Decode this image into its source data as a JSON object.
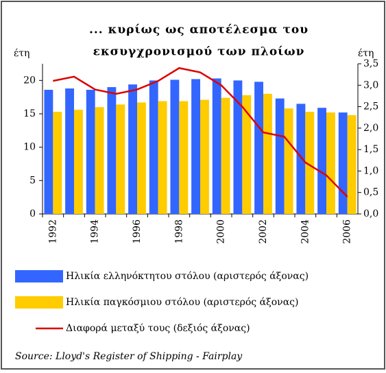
{
  "chart_data": {
    "type": "bar_line",
    "title": [
      "... κυρίως ως αποτέλεσμα του",
      "εκσυγχρονισμού των πλοίων"
    ],
    "y_label": "έτη",
    "y2_label": "έτη",
    "categories": [
      "1992",
      null,
      "1994",
      null,
      "1996",
      null,
      "1998",
      null,
      "2000",
      null,
      "2002",
      null,
      "2004",
      null,
      "2006"
    ],
    "series": [
      {
        "name": "Ηλικία ελληνόκτητου στόλου (αριστερός άξονας)",
        "color": "#3366ff",
        "type": "bar",
        "values": [
          18.6,
          18.8,
          18.6,
          19.0,
          19.4,
          20.0,
          20.1,
          20.2,
          20.3,
          20.0,
          19.8,
          17.3,
          16.5,
          15.9,
          15.2
        ]
      },
      {
        "name": "Ηλικία παγκόσμιου στόλου (αριστερός άξονας)",
        "color": "#ffcc00",
        "type": "bar",
        "values": [
          15.3,
          15.6,
          16.0,
          16.4,
          16.7,
          16.9,
          16.9,
          17.1,
          17.4,
          17.8,
          18.0,
          15.8,
          15.3,
          15.2,
          14.8
        ]
      },
      {
        "name": "Διαφορά μεταξύ τους (δεξιός άξονας)",
        "color": "#dd0000",
        "type": "line",
        "axis": "y2",
        "values": [
          3.1,
          3.2,
          2.9,
          2.8,
          2.9,
          3.1,
          3.4,
          3.3,
          3.0,
          2.5,
          1.9,
          1.8,
          1.2,
          0.9,
          0.4
        ]
      }
    ],
    "ylim": [
      0,
      22.5
    ],
    "yticks": [
      0,
      5,
      10,
      15,
      20
    ],
    "y2lim": [
      0,
      3.5
    ],
    "y2ticks": [
      {
        "value": 0,
        "label": "0,0"
      },
      {
        "value": 0.5,
        "label": "0,5"
      },
      {
        "value": 1,
        "label": "1,0"
      },
      {
        "value": 1.5,
        "label": "1,5"
      },
      {
        "value": 2,
        "label": "2,0"
      },
      {
        "value": 2.5,
        "label": "2,5"
      },
      {
        "value": 3,
        "label": "3,0"
      },
      {
        "value": 3.5,
        "label": "3,5"
      }
    ],
    "source": "Source: Lloyd's Register of Shipping - Fairplay"
  }
}
